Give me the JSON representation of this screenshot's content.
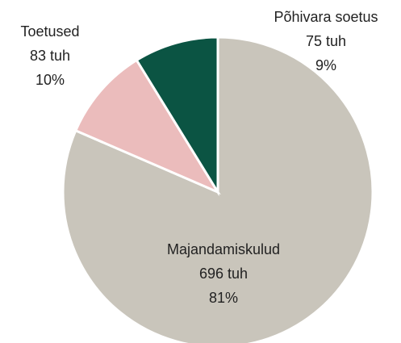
{
  "chart_data": {
    "type": "pie",
    "categories": [
      "Majandamiskulud",
      "Toetused",
      "Põhivara soetus"
    ],
    "values": [
      696,
      83,
      75
    ],
    "value_labels": [
      "696 tuh",
      "83 tuh",
      "75 tuh"
    ],
    "percentages": [
      81,
      10,
      9
    ],
    "percentage_labels": [
      "81%",
      "10%",
      "9%"
    ],
    "colors": [
      "#c9c5bb",
      "#ebbcbc",
      "#0b5443"
    ]
  }
}
